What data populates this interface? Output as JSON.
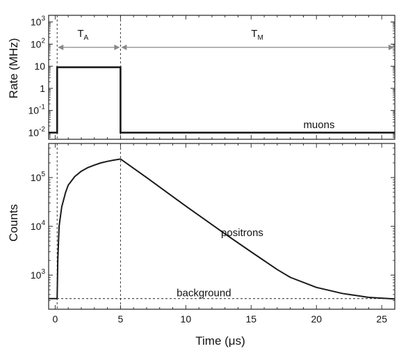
{
  "colors": {
    "line": "#1a1a1a",
    "axis": "#222222",
    "arrow": "#888888",
    "background": "#ffffff"
  },
  "chart_data": [
    {
      "type": "line",
      "panel": "top",
      "xlabel": "",
      "ylabel": "Rate (MHz)",
      "xlim": [
        -0.5,
        26
      ],
      "ylog": true,
      "ylim": [
        0.005,
        2000
      ],
      "yticks": [
        {
          "value": 0.01,
          "base": "10",
          "exp": "-2"
        },
        {
          "value": 0.1,
          "base": "10",
          "exp": "-1"
        },
        {
          "value": 1,
          "base": "1",
          "exp": ""
        },
        {
          "value": 10,
          "base": "10",
          "exp": ""
        },
        {
          "value": 100,
          "base": "10",
          "exp": "2"
        },
        {
          "value": 1000,
          "base": "10",
          "exp": "3"
        }
      ],
      "series": [
        {
          "name": "muons",
          "x": [
            -0.5,
            0.15,
            0.15,
            5.0,
            5.0,
            26.0
          ],
          "y": [
            0.01,
            0.01,
            9,
            9,
            0.01,
            0.01
          ]
        }
      ],
      "annotations": {
        "ta": {
          "main": "T",
          "sub": "A",
          "from": 0.15,
          "to": 5.0,
          "x": 1.7
        },
        "tm": {
          "main": "T",
          "sub": "M",
          "from": 5.0,
          "to": 26.0,
          "x": 15.0
        },
        "muons": {
          "text": "muons",
          "x": 19.0,
          "y": 0.016
        }
      },
      "vlines": [
        0.15,
        5.0
      ]
    },
    {
      "type": "line",
      "panel": "bottom",
      "xlabel": "Time (μs)",
      "ylabel": "Counts",
      "xlim": [
        -0.5,
        26
      ],
      "ylog": true,
      "ylim": [
        200,
        500000
      ],
      "xticks": [
        0,
        5,
        10,
        15,
        20,
        25
      ],
      "yticks": [
        {
          "value": 1000,
          "base": "10",
          "exp": "3"
        },
        {
          "value": 10000,
          "base": "10",
          "exp": "4"
        },
        {
          "value": 100000,
          "base": "10",
          "exp": "5"
        }
      ],
      "series": [
        {
          "name": "positrons",
          "x": [
            -0.5,
            0.0,
            0.15,
            0.2,
            0.3,
            0.5,
            0.8,
            1.0,
            1.5,
            2.0,
            2.5,
            3.0,
            3.5,
            4.0,
            4.5,
            5.0,
            7.0,
            10.0,
            13.0,
            15.0,
            17.0,
            18.0,
            20.0,
            22.0,
            24.0,
            26.0
          ],
          "y": [
            330,
            330,
            330,
            2000,
            10000,
            25000,
            50000,
            70000,
            105000,
            135000,
            160000,
            180000,
            200000,
            215000,
            228000,
            240000,
            100000,
            26000,
            7000,
            3000,
            1300,
            900,
            560,
            420,
            350,
            325
          ]
        }
      ],
      "background": {
        "name": "background",
        "value": 330
      },
      "annotations": {
        "positrons": {
          "text": "positrons",
          "x": 12.7,
          "y": 6300
        },
        "background": {
          "text": "background",
          "x": 9.3,
          "y": 370
        }
      },
      "vlines": [
        0.15,
        5.0
      ]
    }
  ]
}
